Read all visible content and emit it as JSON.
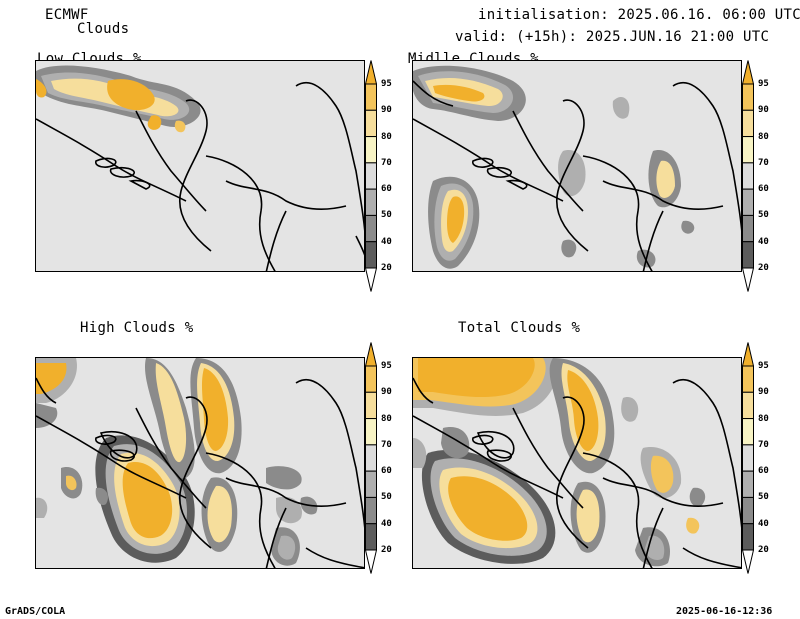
{
  "header": {
    "model": "ECMWF",
    "product": "Clouds",
    "init": "initialisation: 2025.06.16. 06:00 UTC",
    "valid": "valid: (+15h): 2025.JUN.16 21:00 UTC"
  },
  "panels": [
    {
      "title": "Low Clouds %"
    },
    {
      "title": "Midlle Clouds %"
    },
    {
      "title": "High Clouds %"
    },
    {
      "title": "Total Clouds %"
    }
  ],
  "colorbar": {
    "labels": [
      "95",
      "90",
      "80",
      "70",
      "60",
      "50",
      "40",
      "20"
    ],
    "colors": [
      "#f1b02c",
      "#f3c45b",
      "#f6de9c",
      "#f7f3c4",
      "#dcdcdc",
      "#afafaf",
      "#8b8b8b",
      "#5c5c5c",
      "#ffffff"
    ],
    "background": "#e4e4e4"
  },
  "footer": {
    "left": "GrADS/COLA",
    "right": "2025-06-16-12:36"
  }
}
